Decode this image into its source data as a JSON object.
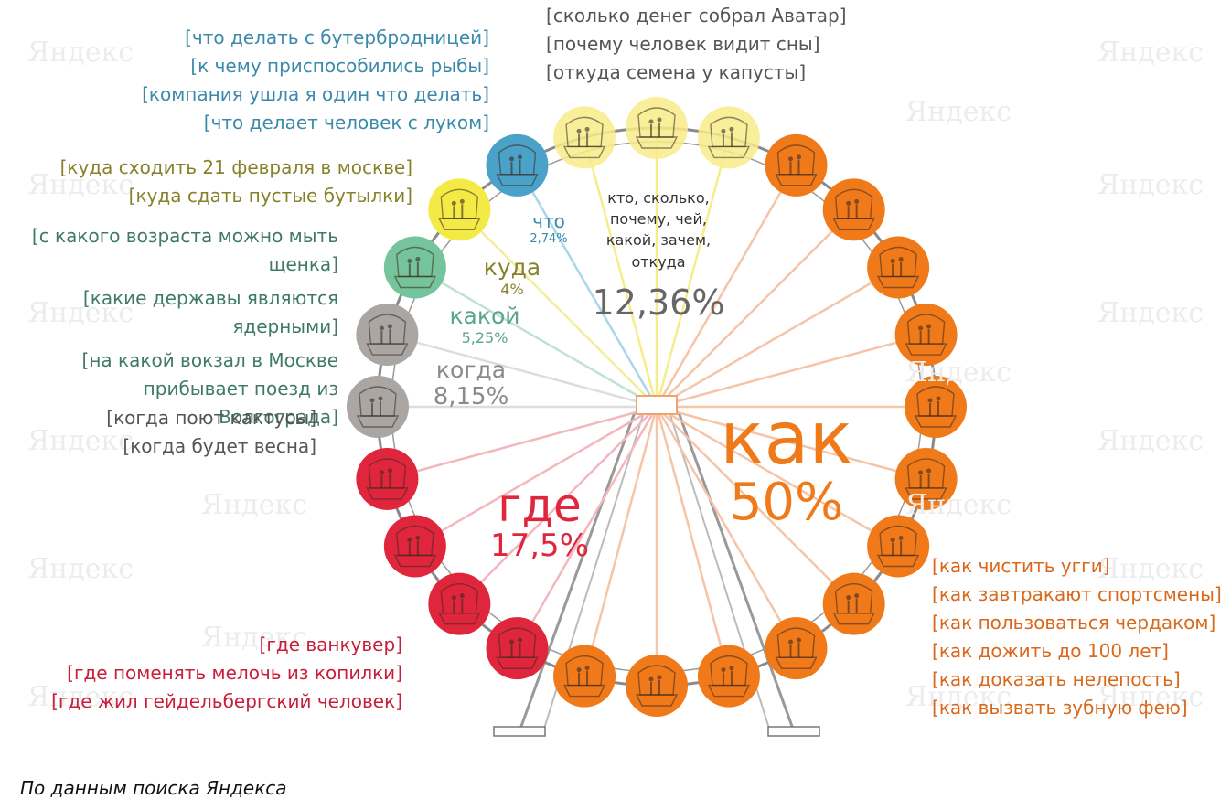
{
  "colors": {
    "kak": "#f07a1a",
    "gde": "#e0263c",
    "kogda": "#8c8a89",
    "kakoi": "#5aa68a",
    "kuda": "#87822a",
    "chto": "#3b8aab",
    "others": "#666666",
    "others_cabin": "#f8ec8a",
    "kuda_cabin": "#f3ea46",
    "chto_cabin": "#4aa2c8",
    "kakoi_cabin": "#75c49b",
    "kogda_cabin": "#a9a6a3"
  },
  "chart_data": {
    "type": "pie",
    "title": "",
    "slices": [
      {
        "word": "как",
        "percent": "50%",
        "value": 50,
        "queries": [
          "как чистить угги",
          "как завтракают спортсмены",
          "как пользоваться чердаком",
          "как дожить до 100 лет",
          "как доказать нелепость",
          "как вызвать зубную фею"
        ]
      },
      {
        "word": "где",
        "percent": "17,5%",
        "value": 17.5,
        "queries": [
          "где ванкувер",
          "где поменять мелочь из копилки",
          "где жил гейдельбергский человек"
        ]
      },
      {
        "word": "когда",
        "percent": "8,15%",
        "value": 8.15,
        "queries": [
          "когда поют кактусы",
          "когда будет весна"
        ]
      },
      {
        "word": "какой",
        "percent": "5,25%",
        "value": 5.25,
        "queries": [
          "с какого возраста можно мыть щенка",
          "какие державы являются ядерными",
          "на какой вокзал в Москве прибывает поезд из Волгограда"
        ]
      },
      {
        "word": "куда",
        "percent": "4%",
        "value": 4,
        "queries": [
          "куда сходить 21 февраля в москве",
          "куда сдать пустые бутылки"
        ]
      },
      {
        "word": "что",
        "percent": "2,74%",
        "value": 2.74,
        "queries": [
          "что делать с бутербродницей",
          "к чему приспособились рыбы",
          "компания ушла я один что делать",
          "что делает человек с луком"
        ]
      },
      {
        "word": "кто, сколько, почему, чей, какой, зачем, откуда",
        "percent": "12,36%",
        "value": 12.36,
        "queries": [
          "сколько денег собрал Аватар",
          "почему человек видит сны",
          "откуда семена у капусты"
        ]
      }
    ]
  },
  "watermark": "Яндекс",
  "footer": "По данным поиска Яндекса"
}
